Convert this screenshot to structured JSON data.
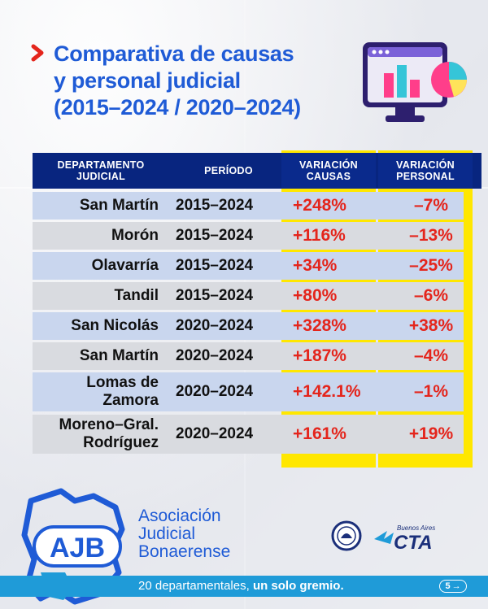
{
  "header": {
    "title_lines": [
      "Comparativa de causas",
      "y personal judicial",
      "(2015–2024 / 2020–2024)"
    ]
  },
  "table": {
    "headers": {
      "departamento": [
        "DEPARTAMENTO",
        "JUDICIAL"
      ],
      "periodo": "PERÍODO",
      "variacion_causas": [
        "VARIACIÓN",
        "CAUSAS"
      ],
      "variacion_personal": [
        "VARIACIÓN",
        "PERSONAL"
      ]
    },
    "rows": [
      {
        "departamento": [
          "San Martín"
        ],
        "periodo": "2015–2024",
        "variacion_causas": "+248%",
        "variacion_personal": "–7%"
      },
      {
        "departamento": [
          "Morón"
        ],
        "periodo": "2015–2024",
        "variacion_causas": "+116%",
        "variacion_personal": "–13%"
      },
      {
        "departamento": [
          "Olavarría"
        ],
        "periodo": "2015–2024",
        "variacion_causas": "+34%",
        "variacion_personal": "–25%"
      },
      {
        "departamento": [
          "Tandil"
        ],
        "periodo": "2015–2024",
        "variacion_causas": "+80%",
        "variacion_personal": "–6%"
      },
      {
        "departamento": [
          "San Nicolás"
        ],
        "periodo": "2020–2024",
        "variacion_causas": "+328%",
        "variacion_personal": "+38%"
      },
      {
        "departamento": [
          "San Martín"
        ],
        "periodo": "2020–2024",
        "variacion_causas": "+187%",
        "variacion_personal": "–4%"
      },
      {
        "departamento": [
          "Lomas de",
          "Zamora"
        ],
        "periodo": "2020–2024",
        "variacion_causas": "+142.1%",
        "variacion_personal": "–1%"
      },
      {
        "departamento": [
          "Moreno–Gral.",
          "Rodríguez"
        ],
        "periodo": "2020–2024",
        "variacion_causas": "+161%",
        "variacion_personal": "+19%"
      }
    ]
  },
  "footer": {
    "logo_text": "AJB",
    "org_name_lines": [
      "Asociación",
      "Judicial",
      "Bonaerense"
    ],
    "partner_logos": [
      "seal-logo",
      "cta-logo"
    ],
    "partner_logo_text": [
      "Buenos Aires",
      "CTA"
    ],
    "tagline_regular": "20 departamentales,",
    "tagline_bold": "un solo gremio.",
    "page_number": "5",
    "page_arrow": "→"
  },
  "colors": {
    "title_blue": "#1f5bd6",
    "header_navy": "#08257f",
    "highlight_yellow": "#ffe700",
    "value_red": "#e4251c",
    "row_blue": "#c9d6ee",
    "row_gray": "#d9dbe0",
    "footer_bar": "#1f9bd8"
  }
}
